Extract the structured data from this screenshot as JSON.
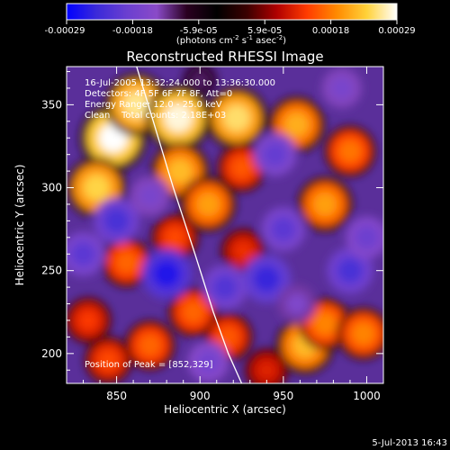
{
  "chart_data": {
    "type": "heatmap",
    "title": "Reconstructed RHESSI Image",
    "xlabel": "Heliocentric X (arcsec)",
    "ylabel": "Heliocentric Y (arcsec)",
    "xlim": [
      820,
      1010
    ],
    "ylim": [
      182,
      373
    ],
    "xticks": [
      850,
      900,
      950,
      1000
    ],
    "yticks": [
      200,
      250,
      300,
      350
    ],
    "colorbar": {
      "min": -0.00029,
      "max": 0.00029,
      "tick_labels": [
        "-0.00029",
        "-0.00018",
        "-5.9e-05",
        "5.9e-05",
        "0.00018",
        "0.00029"
      ],
      "unit_label": "(photons cm⁻² s⁻¹ asec⁻²)",
      "colors": [
        "#0000ff",
        "#3b2ad9",
        "#6a3fd0",
        "#8a4ac8",
        "#2a0020",
        "#000000",
        "#3a0000",
        "#b00000",
        "#ff3b00",
        "#ff8a00",
        "#ffd23a",
        "#ffffff"
      ]
    },
    "annotations": {
      "time_range": "16-Jul-2005 13:32:24.000 to 13:36:30.000",
      "detectors": "Detectors: 4F 5F 6F 7F 8F, Att=0",
      "energy_range": "Energy Range: 12.0 - 25.0 keV",
      "method": "Clean",
      "total_counts": "Total counts: 2.18E+03",
      "peak": "Position of Peak = [852,329]"
    },
    "limb_curve": {
      "x": [
        862,
        872,
        884,
        897,
        908,
        917,
        925
      ],
      "y": [
        373,
        340,
        300,
        260,
        225,
        200,
        182
      ]
    },
    "peak_position": [
      852,
      329
    ],
    "blobs": [
      {
        "x": 848,
        "y": 330,
        "value": 0.00029
      },
      {
        "x": 862,
        "y": 350,
        "value": 0.00026
      },
      {
        "x": 838,
        "y": 300,
        "value": 0.00024
      },
      {
        "x": 887,
        "y": 342,
        "value": 0.00028
      },
      {
        "x": 888,
        "y": 310,
        "value": 0.00022
      },
      {
        "x": 905,
        "y": 290,
        "value": 0.0002
      },
      {
        "x": 922,
        "y": 342,
        "value": 0.00025
      },
      {
        "x": 958,
        "y": 338,
        "value": 0.00021
      },
      {
        "x": 975,
        "y": 290,
        "value": 0.0002
      },
      {
        "x": 925,
        "y": 312,
        "value": 0.00015
      },
      {
        "x": 856,
        "y": 255,
        "value": 0.00016
      },
      {
        "x": 885,
        "y": 270,
        "value": 0.00014
      },
      {
        "x": 926,
        "y": 262,
        "value": 0.00012
      },
      {
        "x": 963,
        "y": 205,
        "value": 0.00022
      },
      {
        "x": 975,
        "y": 218,
        "value": 0.00018
      },
      {
        "x": 998,
        "y": 212,
        "value": 0.00018
      },
      {
        "x": 896,
        "y": 225,
        "value": 0.00016
      },
      {
        "x": 870,
        "y": 205,
        "value": 0.00016
      },
      {
        "x": 833,
        "y": 220,
        "value": 0.00013
      },
      {
        "x": 845,
        "y": 196,
        "value": 0.00014
      },
      {
        "x": 917,
        "y": 210,
        "value": 0.00015
      },
      {
        "x": 940,
        "y": 190,
        "value": 0.00011
      },
      {
        "x": 990,
        "y": 322,
        "value": 0.00017
      },
      {
        "x": 850,
        "y": 280,
        "value": -0.00022
      },
      {
        "x": 880,
        "y": 248,
        "value": -0.00026
      },
      {
        "x": 915,
        "y": 240,
        "value": -0.00021
      },
      {
        "x": 940,
        "y": 245,
        "value": -0.00024
      },
      {
        "x": 950,
        "y": 275,
        "value": -0.0002
      },
      {
        "x": 990,
        "y": 250,
        "value": -0.00022
      },
      {
        "x": 1000,
        "y": 270,
        "value": -0.00018
      },
      {
        "x": 945,
        "y": 320,
        "value": -0.00019
      },
      {
        "x": 870,
        "y": 295,
        "value": -0.00016
      },
      {
        "x": 958,
        "y": 230,
        "value": -0.00015
      },
      {
        "x": 905,
        "y": 195,
        "value": -0.00017
      },
      {
        "x": 985,
        "y": 360,
        "value": -0.00016
      },
      {
        "x": 830,
        "y": 260,
        "value": -0.0002
      },
      {
        "x": 900,
        "y": 365,
        "value": -0.0001
      }
    ]
  },
  "timestamp": "5-Jul-2013 16:43"
}
